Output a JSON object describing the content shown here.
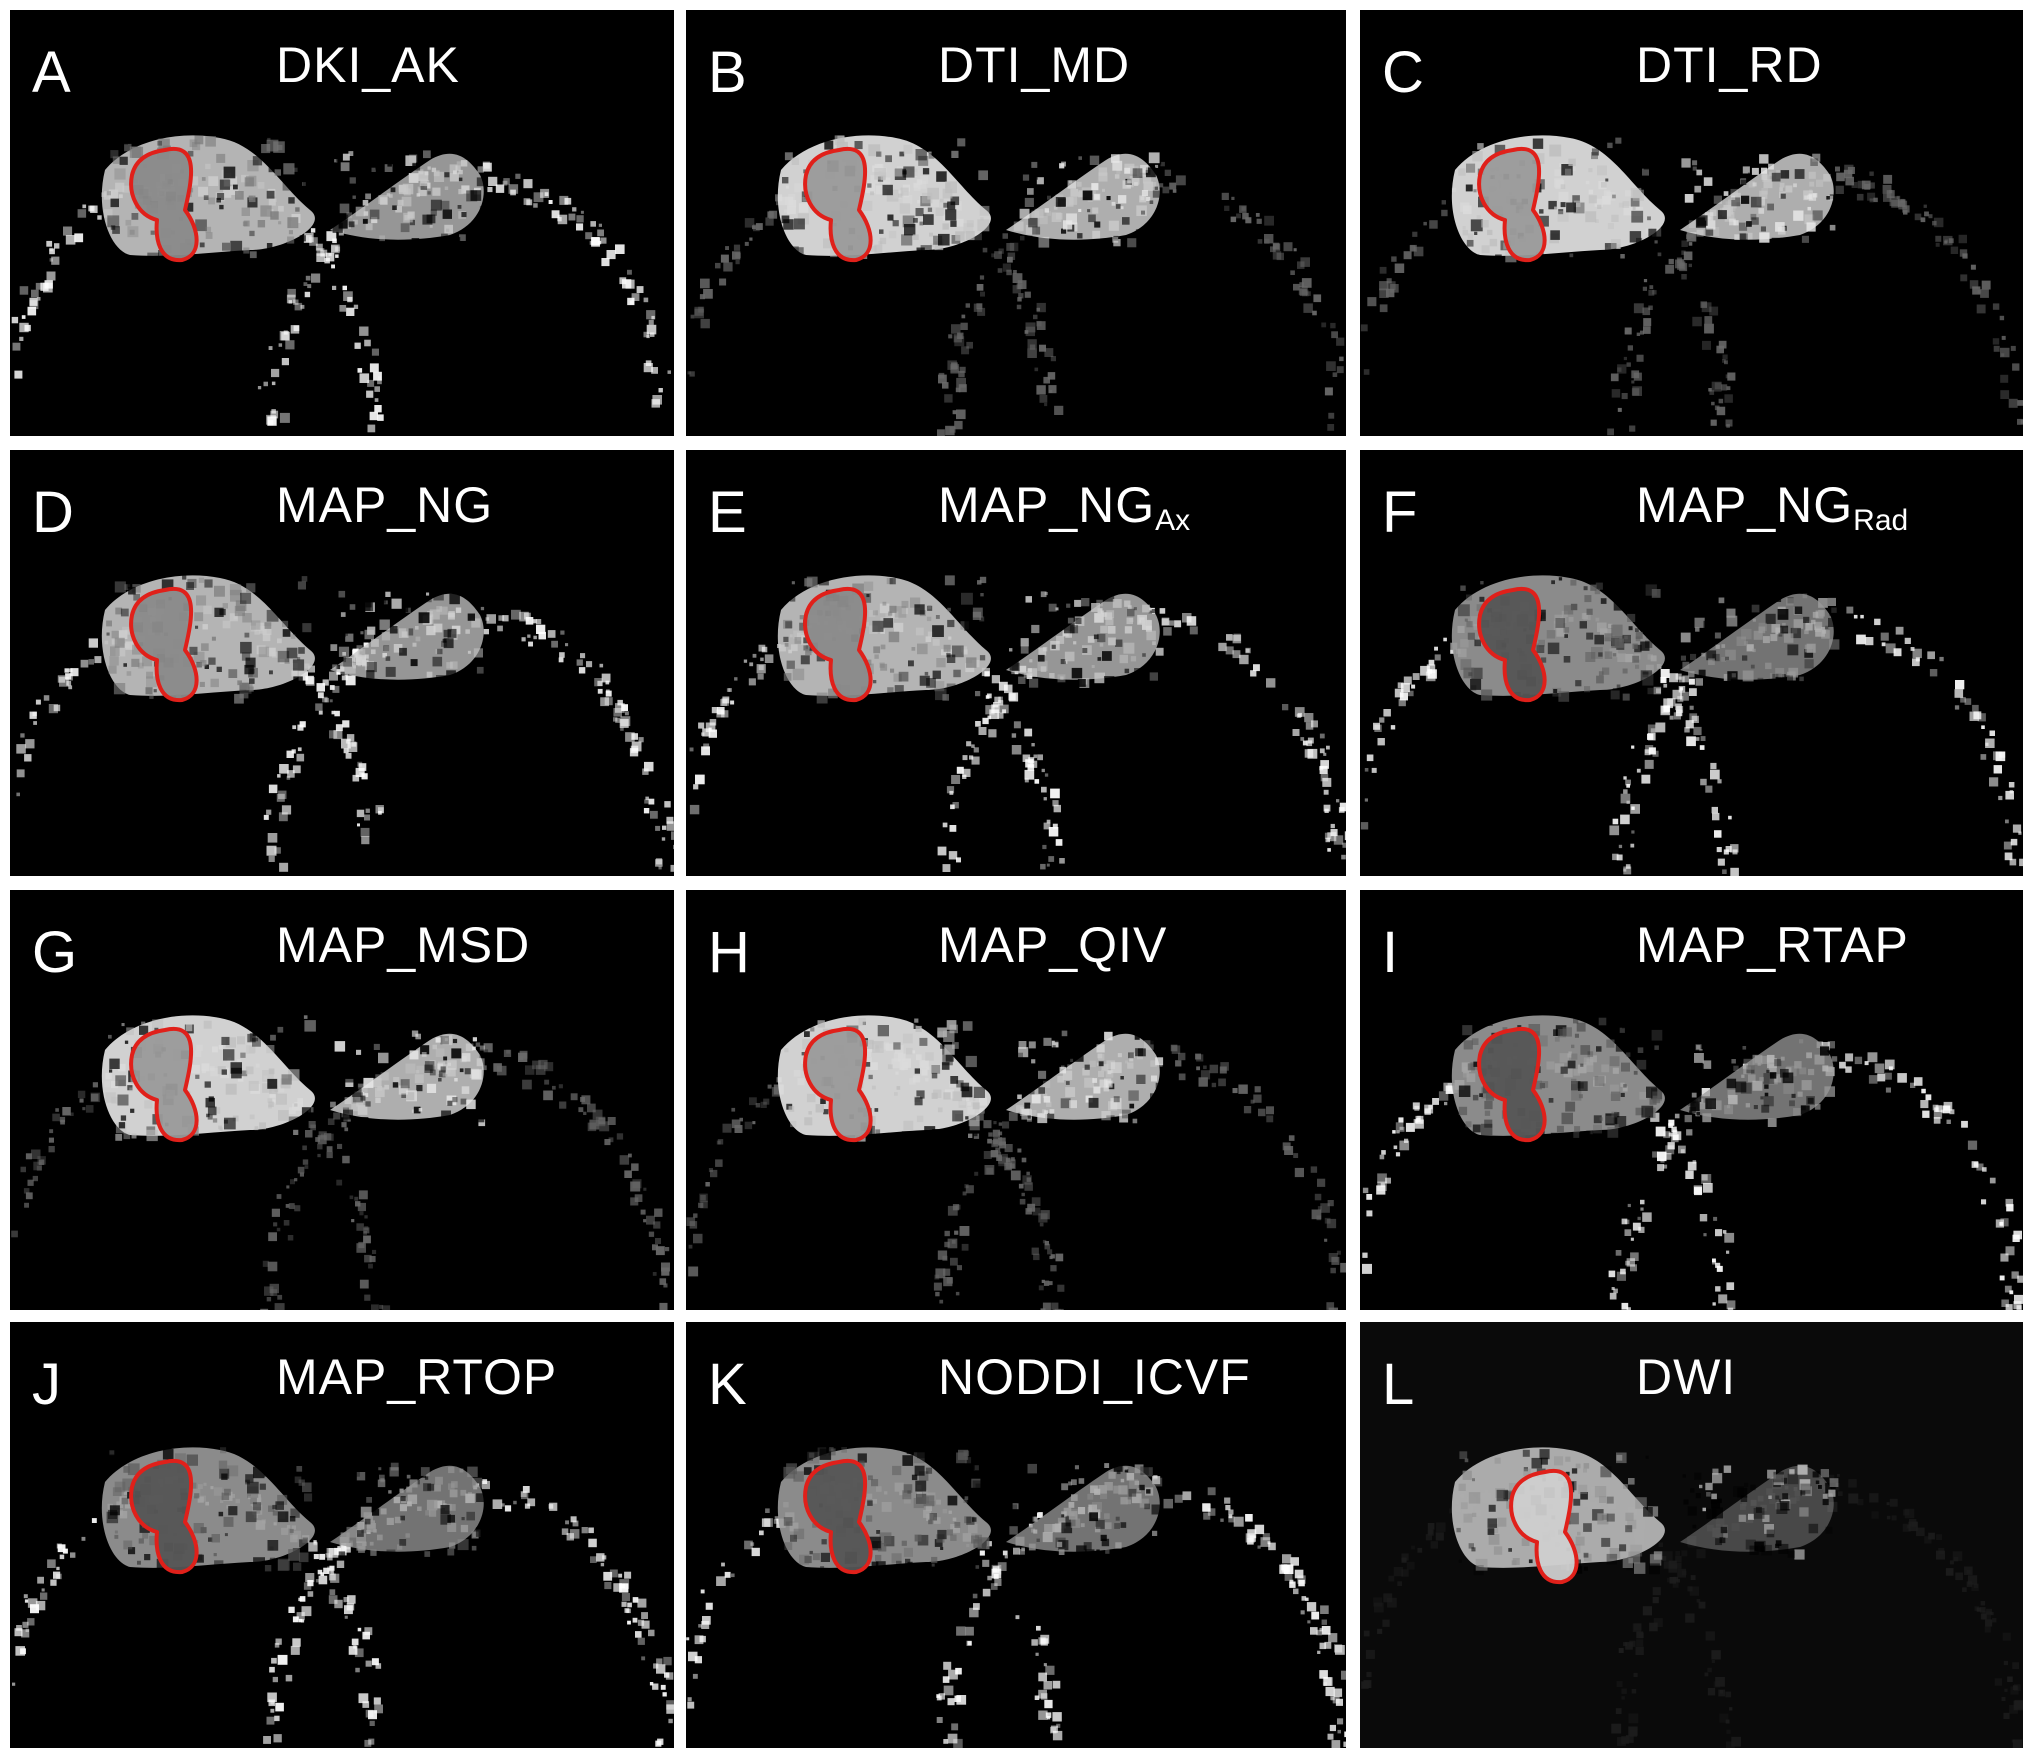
{
  "figure": {
    "panels": [
      {
        "letter": "A",
        "title": "DKI_AK",
        "subscript": "",
        "tone": "mid"
      },
      {
        "letter": "B",
        "title": "DTI_MD",
        "subscript": "",
        "tone": "bright"
      },
      {
        "letter": "C",
        "title": "DTI_RD",
        "subscript": "",
        "tone": "bright"
      },
      {
        "letter": "D",
        "title": "MAP_NG",
        "subscript": "",
        "tone": "mid"
      },
      {
        "letter": "E",
        "title": "MAP_NG",
        "subscript": "Ax",
        "tone": "mid"
      },
      {
        "letter": "F",
        "title": "MAP_NG",
        "subscript": "Rad",
        "tone": "dark"
      },
      {
        "letter": "G",
        "title": "MAP_MSD",
        "subscript": "",
        "tone": "bright"
      },
      {
        "letter": "H",
        "title": "MAP_QIV",
        "subscript": "",
        "tone": "bright"
      },
      {
        "letter": "I",
        "title": "MAP_RTAP",
        "subscript": "",
        "tone": "dark"
      },
      {
        "letter": "J",
        "title": "MAP_RTOP",
        "subscript": "",
        "tone": "dark"
      },
      {
        "letter": "K",
        "title": "NODDI_ICVF",
        "subscript": "",
        "tone": "dark"
      },
      {
        "letter": "L",
        "title": "DWI",
        "subscript": "",
        "tone": "soft"
      }
    ],
    "colors": {
      "background": "#000000",
      "separator": "#ffffff",
      "roi_outline": "#e0201a",
      "label_text": "#ffffff"
    }
  }
}
